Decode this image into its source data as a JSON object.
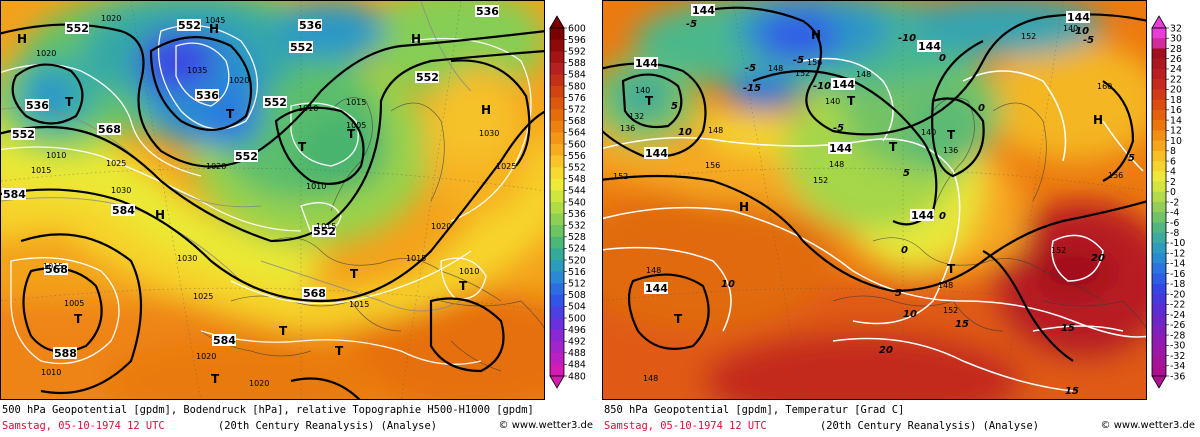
{
  "left": {
    "caption": "500 hPa Geopotential [gpdm], Bodendruck [hPa], relative Topographie H500-H1000 [gpdm]",
    "date": "Samstag, 05-10-1974  12 UTC",
    "source": "(20th Century Reanalysis)  (Analyse)",
    "copyright": "© www.wetter3.de",
    "scale_ticks": [
      "600",
      "596",
      "592",
      "588",
      "584",
      "580",
      "576",
      "572",
      "568",
      "564",
      "560",
      "556",
      "552",
      "548",
      "544",
      "540",
      "536",
      "532",
      "528",
      "524",
      "520",
      "516",
      "512",
      "508",
      "504",
      "500",
      "496",
      "492",
      "488",
      "484",
      "480"
    ],
    "scale_colors": [
      "#7a0000",
      "#8e0a0a",
      "#a31414",
      "#b52020",
      "#c23018",
      "#cf4410",
      "#dc580c",
      "#e46c0a",
      "#ec8010",
      "#f39618",
      "#f7ac20",
      "#f9c42a",
      "#f6da30",
      "#ecec38",
      "#cfe63c",
      "#afdc46",
      "#8ed052",
      "#6cc462",
      "#4cb878",
      "#36aa98",
      "#2c9cba",
      "#2a88d4",
      "#2c6ee2",
      "#3254e8",
      "#4a40e4",
      "#6a30de",
      "#8a28d6",
      "#a424cc",
      "#bc20c0",
      "#d41cb2"
    ],
    "pressure_labels": {
      "l1020": "1020",
      "l1015": "1015",
      "l1010": "1010",
      "l1005": "1005",
      "l1025": "1025",
      "l1030": "1030",
      "l1045": "1045",
      "l1035": "1035"
    },
    "geo_labels": {
      "l552": "552",
      "l536": "536",
      "l568": "568",
      "l584": "584",
      "l588": "588"
    },
    "centers": {
      "high": "H",
      "low": "T"
    }
  },
  "right": {
    "caption": "850 hPa Geopotential [gpdm], Temperatur [Grad C]",
    "date": "Samstag, 05-10-1974  12 UTC",
    "source": "(20th Century Reanalysis)  (Analyse)",
    "copyright": "© www.wetter3.de",
    "scale_ticks": [
      "32",
      "30",
      "28",
      "26",
      "24",
      "22",
      "20",
      "18",
      "16",
      "14",
      "12",
      "10",
      "8",
      "6",
      "4",
      "2",
      "0",
      "-2",
      "-4",
      "-6",
      "-8",
      "-10",
      "-12",
      "-14",
      "-16",
      "-18",
      "-20",
      "-22",
      "-24",
      "-26",
      "-28",
      "-30",
      "-32",
      "-34",
      "-36"
    ],
    "scale_colors": [
      "#ea3cd8",
      "#d22c9a",
      "#a00f1e",
      "#ac1620",
      "#b81e22",
      "#c42a1e",
      "#d03a18",
      "#dc4c12",
      "#e4600e",
      "#ec760c",
      "#f28e12",
      "#f6a61c",
      "#f8be26",
      "#f6d430",
      "#eee83a",
      "#d2e440",
      "#b2da4a",
      "#92ce58",
      "#72c26a",
      "#52b682",
      "#3caaa0",
      "#2e9cbc",
      "#2a8ad2",
      "#2c72e0",
      "#305ce6",
      "#3646e4",
      "#4838dc",
      "#5a2ed2",
      "#6c26c8",
      "#7e20be",
      "#8e1cb2",
      "#9a18a6",
      "#a4149a",
      "#ac1090"
    ],
    "geo_labels": {
      "l144": "144",
      "l140": "140",
      "l148": "148",
      "l152": "152",
      "l156": "156",
      "l136": "136",
      "l132": "132",
      "l160": "160",
      "l148b": "148"
    },
    "temp_labels": {
      "t5": "5",
      "tm5": "-5",
      "t10": "10",
      "tm10": "-10",
      "t15": "15",
      "t20": "20",
      "t0": "0",
      "tm15": "-15"
    },
    "centers": {
      "high": "H",
      "low": "T"
    }
  }
}
